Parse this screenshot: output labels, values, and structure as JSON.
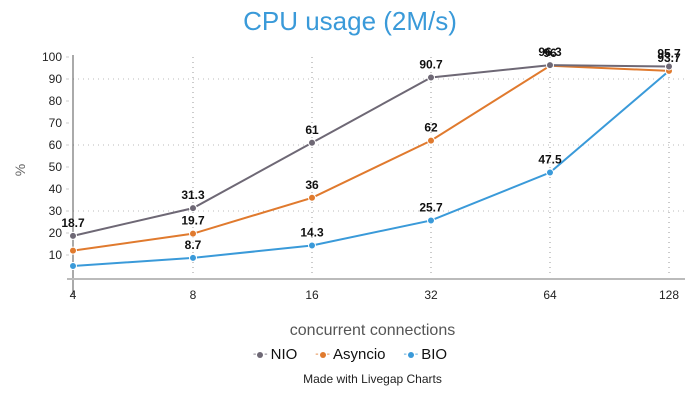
{
  "chart_data": {
    "type": "line",
    "title": "CPU usage (2M/s)",
    "xlabel": "concurrent connections",
    "ylabel": "%",
    "categories": [
      "4",
      "8",
      "16",
      "32",
      "64",
      "128"
    ],
    "ylim": [
      0,
      100
    ],
    "yticks": [
      10,
      20,
      30,
      40,
      50,
      60,
      70,
      80,
      90,
      100
    ],
    "grid": {
      "y_dotted_at": [
        30,
        60,
        90
      ],
      "x_dotted": true
    },
    "legend_position": "bottom",
    "series": [
      {
        "name": "NIO",
        "color": "#6e6875",
        "values": [
          18.7,
          31.3,
          61,
          90.7,
          96.3,
          95.7
        ],
        "labels": [
          "18.7",
          "31.3",
          "61",
          "90.7",
          "96.3",
          "95.7"
        ]
      },
      {
        "name": "Asyncio",
        "color": "#e07a2e",
        "values": [
          12,
          19.7,
          36,
          62,
          96,
          93.7
        ],
        "labels": [
          "",
          "19.7",
          "36",
          "62",
          "96",
          "93.7"
        ]
      },
      {
        "name": "BIO",
        "color": "#3a9ad9",
        "values": [
          5,
          8.7,
          14.3,
          25.7,
          47.5,
          93.7
        ],
        "labels": [
          "",
          "8.7",
          "14.3",
          "25.7",
          "47.5",
          ""
        ]
      }
    ]
  },
  "title": "CPU usage (2M/s)",
  "xlabel": "concurrent connections",
  "ylabel": "%",
  "legend": [
    {
      "name": "NIO",
      "color": "#6e6875"
    },
    {
      "name": "Asyncio",
      "color": "#e07a2e"
    },
    {
      "name": "BIO",
      "color": "#3a9ad9"
    }
  ],
  "credit": "Made with Livegap Charts"
}
